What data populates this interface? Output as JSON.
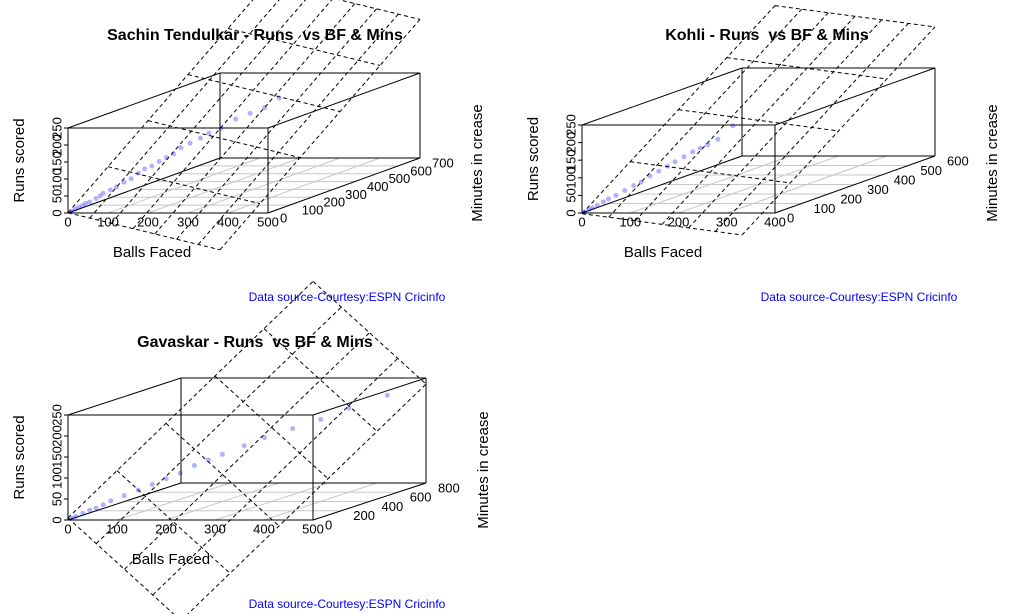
{
  "chart_data": [
    {
      "type": "scatter3d",
      "title": "Sachin Tendulkar - Runs  vs BF & Mins",
      "xlabel": "Balls Faced",
      "ylabel": "Minutes in crease",
      "zlabel": "Runs scored",
      "caption": "Data source-Courtesy:ESPN Cricinfo",
      "xlim": [
        0,
        500
      ],
      "xticks": [
        0,
        100,
        200,
        300,
        400,
        500
      ],
      "ylim": [
        0,
        700
      ],
      "yticks": [
        0,
        100,
        200,
        300,
        400,
        500,
        600,
        700
      ],
      "zlim": [
        0,
        250
      ],
      "zticks": [
        0,
        50,
        100,
        150,
        200,
        250
      ],
      "color": "#0000ff",
      "x": [
        5,
        10,
        15,
        20,
        25,
        30,
        40,
        45,
        50,
        60,
        70,
        80,
        90,
        100,
        110,
        120,
        130,
        140,
        150,
        160,
        175,
        190,
        200,
        220,
        240,
        260,
        280,
        300
      ],
      "y": [
        8,
        15,
        22,
        30,
        35,
        45,
        55,
        65,
        70,
        85,
        95,
        110,
        125,
        140,
        150,
        165,
        180,
        195,
        210,
        225,
        240,
        260,
        280,
        300,
        330,
        360,
        390,
        420
      ],
      "z": [
        3,
        8,
        12,
        15,
        20,
        22,
        30,
        35,
        42,
        48,
        55,
        65,
        72,
        85,
        95,
        100,
        110,
        118,
        125,
        140,
        150,
        160,
        170,
        180,
        200,
        210,
        220,
        241
      ]
    },
    {
      "type": "scatter3d",
      "title": "Kohli - Runs  vs BF & Mins",
      "xlabel": "Balls Faced",
      "ylabel": "Minutes in crease",
      "zlabel": "Runs scored",
      "caption": "Data source-Courtesy:ESPN Cricinfo",
      "xlim": [
        0,
        400
      ],
      "xticks": [
        0,
        100,
        200,
        300,
        400
      ],
      "ylim": [
        0,
        600
      ],
      "yticks": [
        0,
        100,
        200,
        300,
        400,
        500,
        600
      ],
      "zlim": [
        0,
        250
      ],
      "zticks": [
        0,
        50,
        100,
        150,
        200,
        250
      ],
      "color": "#0000ff",
      "x": [
        3,
        8,
        12,
        18,
        25,
        30,
        40,
        50,
        60,
        70,
        80,
        90,
        100,
        110,
        120,
        130,
        140,
        150,
        160,
        180
      ],
      "y": [
        5,
        12,
        18,
        25,
        35,
        45,
        55,
        70,
        85,
        95,
        110,
        125,
        140,
        150,
        165,
        180,
        190,
        200,
        220,
        240
      ],
      "z": [
        2,
        7,
        10,
        15,
        22,
        28,
        35,
        45,
        55,
        62,
        75,
        85,
        95,
        105,
        115,
        125,
        133,
        140,
        150,
        183
      ]
    },
    {
      "type": "scatter3d",
      "title": "Gavaskar - Runs  vs BF & Mins",
      "xlabel": "Balls Faced",
      "ylabel": "Minutes in crease",
      "zlabel": "Runs scored",
      "caption": "Data source-Courtesy:ESPN Cricinfo",
      "xlim": [
        0,
        500
      ],
      "xticks": [
        0,
        100,
        200,
        300,
        400,
        500
      ],
      "ylim": [
        0,
        800
      ],
      "yticks": [
        0,
        200,
        400,
        600,
        800
      ],
      "zlim": [
        0,
        250
      ],
      "zticks": [
        0,
        50,
        100,
        150,
        200,
        250
      ],
      "color": "#0000ff",
      "x": [
        5,
        10,
        20,
        30,
        40,
        50,
        60,
        80,
        100,
        120,
        140,
        160,
        180,
        200,
        220,
        250,
        280,
        320,
        360,
        400,
        450
      ],
      "y": [
        10,
        20,
        35,
        50,
        60,
        75,
        95,
        120,
        150,
        180,
        210,
        240,
        270,
        300,
        330,
        380,
        420,
        480,
        540,
        600,
        700
      ],
      "z": [
        3,
        6,
        12,
        18,
        22,
        28,
        35,
        45,
        55,
        65,
        75,
        85,
        100,
        110,
        120,
        135,
        150,
        165,
        180,
        200,
        220
      ]
    }
  ]
}
